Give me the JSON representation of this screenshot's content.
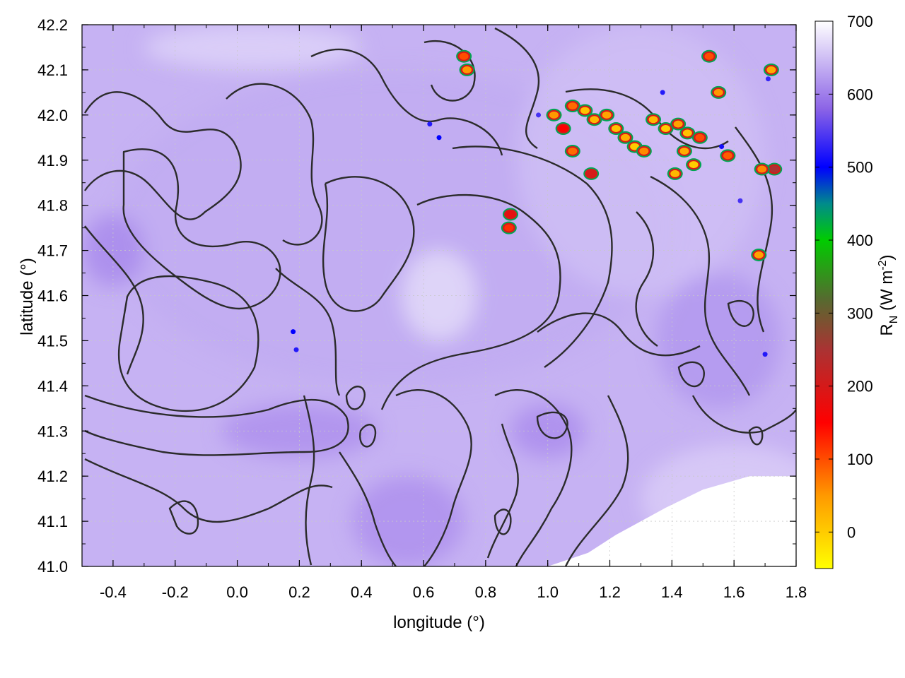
{
  "chart_data": {
    "type": "heatmap",
    "xlabel": "longitude (°)",
    "ylabel": "latitude (°)",
    "xlim": [
      -0.5,
      1.8
    ],
    "ylim": [
      41.0,
      42.2
    ],
    "x_ticks": [
      "-0.4",
      "-0.2",
      "0.0",
      "0.2",
      "0.4",
      "0.6",
      "0.8",
      "1.0",
      "1.2",
      "1.4",
      "1.6",
      "1.8"
    ],
    "x_tick_values": [
      -0.4,
      -0.2,
      0.0,
      0.2,
      0.4,
      0.6,
      0.8,
      1.0,
      1.2,
      1.4,
      1.6,
      1.8
    ],
    "y_ticks": [
      "41.0",
      "41.1",
      "41.2",
      "41.3",
      "41.4",
      "41.5",
      "41.6",
      "41.7",
      "41.8",
      "41.9",
      "42.0",
      "42.1",
      "42.2"
    ],
    "y_tick_values": [
      41.0,
      41.1,
      41.2,
      41.3,
      41.4,
      41.5,
      41.6,
      41.7,
      41.8,
      41.9,
      42.0,
      42.1,
      42.2
    ],
    "grid": true,
    "colorbar": {
      "label_main": "R",
      "label_sub": "N",
      "label_units_pre": " (W m",
      "label_units_sup": "-2",
      "label_units_post": ")",
      "range": [
        -50,
        700
      ],
      "ticks": [
        "0",
        "100",
        "200",
        "300",
        "400",
        "500",
        "600",
        "700"
      ],
      "tick_values": [
        0,
        100,
        200,
        300,
        400,
        500,
        600,
        700
      ],
      "stops": [
        {
          "value": -50,
          "color": "#ffff00"
        },
        {
          "value": 50,
          "color": "#ff9900"
        },
        {
          "value": 150,
          "color": "#ff0000"
        },
        {
          "value": 250,
          "color": "#aa3333"
        },
        {
          "value": 320,
          "color": "#556b2f"
        },
        {
          "value": 400,
          "color": "#00cc00"
        },
        {
          "value": 450,
          "color": "#008b8b"
        },
        {
          "value": 500,
          "color": "#0000ff"
        },
        {
          "value": 580,
          "color": "#8c64e6"
        },
        {
          "value": 700,
          "color": "#ffffff"
        }
      ]
    },
    "background_value": 640,
    "regions": [
      {
        "lon": 0.5,
        "lat": 41.75,
        "rx": 0.9,
        "ry": 0.35,
        "value": 635
      },
      {
        "lon": 1.3,
        "lat": 41.9,
        "rx": 0.4,
        "ry": 0.3,
        "value": 650
      },
      {
        "lon": 0.65,
        "lat": 41.6,
        "rx": 0.12,
        "ry": 0.1,
        "value": 672
      },
      {
        "lon": 1.6,
        "lat": 41.15,
        "rx": 0.3,
        "ry": 0.12,
        "value": 660
      },
      {
        "lon": 0.55,
        "lat": 41.1,
        "rx": 0.18,
        "ry": 0.1,
        "value": 615
      },
      {
        "lon": 0.2,
        "lat": 41.3,
        "rx": 0.25,
        "ry": 0.06,
        "value": 615
      },
      {
        "lon": -0.4,
        "lat": 41.7,
        "rx": 0.1,
        "ry": 0.08,
        "value": 610
      },
      {
        "lon": 1.55,
        "lat": 41.5,
        "rx": 0.2,
        "ry": 0.15,
        "value": 620
      },
      {
        "lon": 1.0,
        "lat": 41.3,
        "rx": 0.12,
        "ry": 0.06,
        "value": 612
      },
      {
        "lon": 0.05,
        "lat": 42.15,
        "rx": 0.35,
        "ry": 0.05,
        "value": 665
      }
    ],
    "no_data_regions": [
      {
        "polygon": [
          [
            1.0,
            41.0
          ],
          [
            1.8,
            41.0
          ],
          [
            1.8,
            41.2
          ],
          [
            1.65,
            41.2
          ],
          [
            1.5,
            41.17
          ],
          [
            1.38,
            41.13
          ],
          [
            1.3,
            41.1
          ],
          [
            1.22,
            41.07
          ],
          [
            1.13,
            41.03
          ],
          [
            1.0,
            41.0
          ]
        ],
        "label": ""
      }
    ],
    "hotspots": [
      {
        "lon": 1.15,
        "lat": 41.99,
        "value": 20
      },
      {
        "lon": 1.19,
        "lat": 42.0,
        "value": 40
      },
      {
        "lon": 1.22,
        "lat": 41.97,
        "value": 10
      },
      {
        "lon": 1.25,
        "lat": 41.95,
        "value": 30
      },
      {
        "lon": 1.28,
        "lat": 41.93,
        "value": 0
      },
      {
        "lon": 1.31,
        "lat": 41.92,
        "value": 60
      },
      {
        "lon": 1.34,
        "lat": 41.99,
        "value": 20
      },
      {
        "lon": 1.38,
        "lat": 41.97,
        "value": 0
      },
      {
        "lon": 1.42,
        "lat": 41.98,
        "value": 40
      },
      {
        "lon": 1.45,
        "lat": 41.96,
        "value": 10
      },
      {
        "lon": 1.44,
        "lat": 41.92,
        "value": 30
      },
      {
        "lon": 1.47,
        "lat": 41.89,
        "value": 0
      },
      {
        "lon": 1.49,
        "lat": 41.95,
        "value": 100
      },
      {
        "lon": 1.02,
        "lat": 42.0,
        "value": 50
      },
      {
        "lon": 1.05,
        "lat": 41.97,
        "value": 150
      },
      {
        "lon": 1.08,
        "lat": 42.02,
        "value": 80
      },
      {
        "lon": 1.12,
        "lat": 42.01,
        "value": 10
      },
      {
        "lon": 1.73,
        "lat": 41.88,
        "value": 250
      },
      {
        "lon": 1.69,
        "lat": 41.88,
        "value": 60
      },
      {
        "lon": 0.88,
        "lat": 41.78,
        "value": 180
      },
      {
        "lon": 0.875,
        "lat": 41.75,
        "value": 120
      },
      {
        "lon": 0.73,
        "lat": 42.13,
        "value": 100
      },
      {
        "lon": 0.74,
        "lat": 42.1,
        "value": 50
      },
      {
        "lon": 1.68,
        "lat": 41.69,
        "value": 40
      },
      {
        "lon": 1.08,
        "lat": 41.92,
        "value": 80
      },
      {
        "lon": 1.72,
        "lat": 42.1,
        "value": 30
      },
      {
        "lon": 1.52,
        "lat": 42.13,
        "value": 100
      },
      {
        "lon": 1.14,
        "lat": 41.87,
        "value": 200
      },
      {
        "lon": 1.58,
        "lat": 41.91,
        "value": 90
      },
      {
        "lon": 1.41,
        "lat": 41.87,
        "value": 20
      },
      {
        "lon": 1.55,
        "lat": 42.05,
        "value": 50
      }
    ],
    "cold_spots": [
      {
        "lon": 0.18,
        "lat": 41.52,
        "value": 500
      },
      {
        "lon": 0.19,
        "lat": 41.48,
        "value": 520
      },
      {
        "lon": 0.62,
        "lat": 41.98,
        "value": 520
      },
      {
        "lon": 1.37,
        "lat": 42.05,
        "value": 520
      },
      {
        "lon": 1.56,
        "lat": 41.93,
        "value": 510
      },
      {
        "lon": 1.7,
        "lat": 41.47,
        "value": 520
      },
      {
        "lon": 1.62,
        "lat": 41.81,
        "value": 540
      },
      {
        "lon": 0.97,
        "lat": 42.0,
        "value": 540
      },
      {
        "lon": 1.71,
        "lat": 42.08,
        "value": 530
      },
      {
        "lon": 0.65,
        "lat": 41.95,
        "value": 500
      }
    ],
    "contour_color": "#2b2b2b"
  }
}
